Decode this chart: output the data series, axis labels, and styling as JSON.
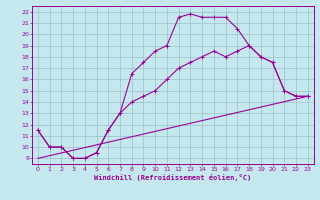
{
  "xlabel": "Windchill (Refroidissement éolien,°C)",
  "xlim": [
    -0.5,
    23.5
  ],
  "ylim": [
    8.5,
    22.5
  ],
  "yticks": [
    9,
    10,
    11,
    12,
    13,
    14,
    15,
    16,
    17,
    18,
    19,
    20,
    21,
    22
  ],
  "xticks": [
    0,
    1,
    2,
    3,
    4,
    5,
    6,
    7,
    8,
    9,
    10,
    11,
    12,
    13,
    14,
    15,
    16,
    17,
    18,
    19,
    20,
    21,
    22,
    23
  ],
  "bg_color": "#c5e8ef",
  "line_color": "#990099",
  "grid_color": "#9bbfc8",
  "line1_x": [
    0,
    1,
    2,
    3,
    4,
    5,
    6,
    7,
    8,
    9,
    10,
    11,
    12,
    13,
    14,
    15,
    16,
    17,
    18,
    19,
    20,
    21,
    22,
    23
  ],
  "line1_y": [
    11.5,
    10.0,
    10.0,
    9.0,
    9.0,
    9.5,
    11.5,
    13.0,
    16.5,
    17.5,
    18.5,
    19.0,
    21.5,
    21.8,
    21.5,
    21.5,
    21.5,
    20.5,
    19.0,
    18.0,
    17.5,
    15.0,
    14.5,
    14.5
  ],
  "line2_x": [
    0,
    1,
    2,
    3,
    4,
    5,
    6,
    7,
    8,
    9,
    10,
    11,
    12,
    13,
    14,
    15,
    16,
    17,
    18,
    19,
    20,
    21,
    22,
    23
  ],
  "line2_y": [
    11.5,
    10.0,
    10.0,
    9.0,
    9.0,
    9.5,
    11.5,
    13.0,
    14.0,
    14.5,
    15.0,
    16.0,
    17.0,
    17.5,
    18.0,
    18.5,
    18.0,
    18.5,
    19.0,
    18.0,
    17.5,
    15.0,
    14.5,
    14.5
  ],
  "line3_x": [
    0,
    23
  ],
  "line3_y": [
    9.0,
    14.5
  ]
}
